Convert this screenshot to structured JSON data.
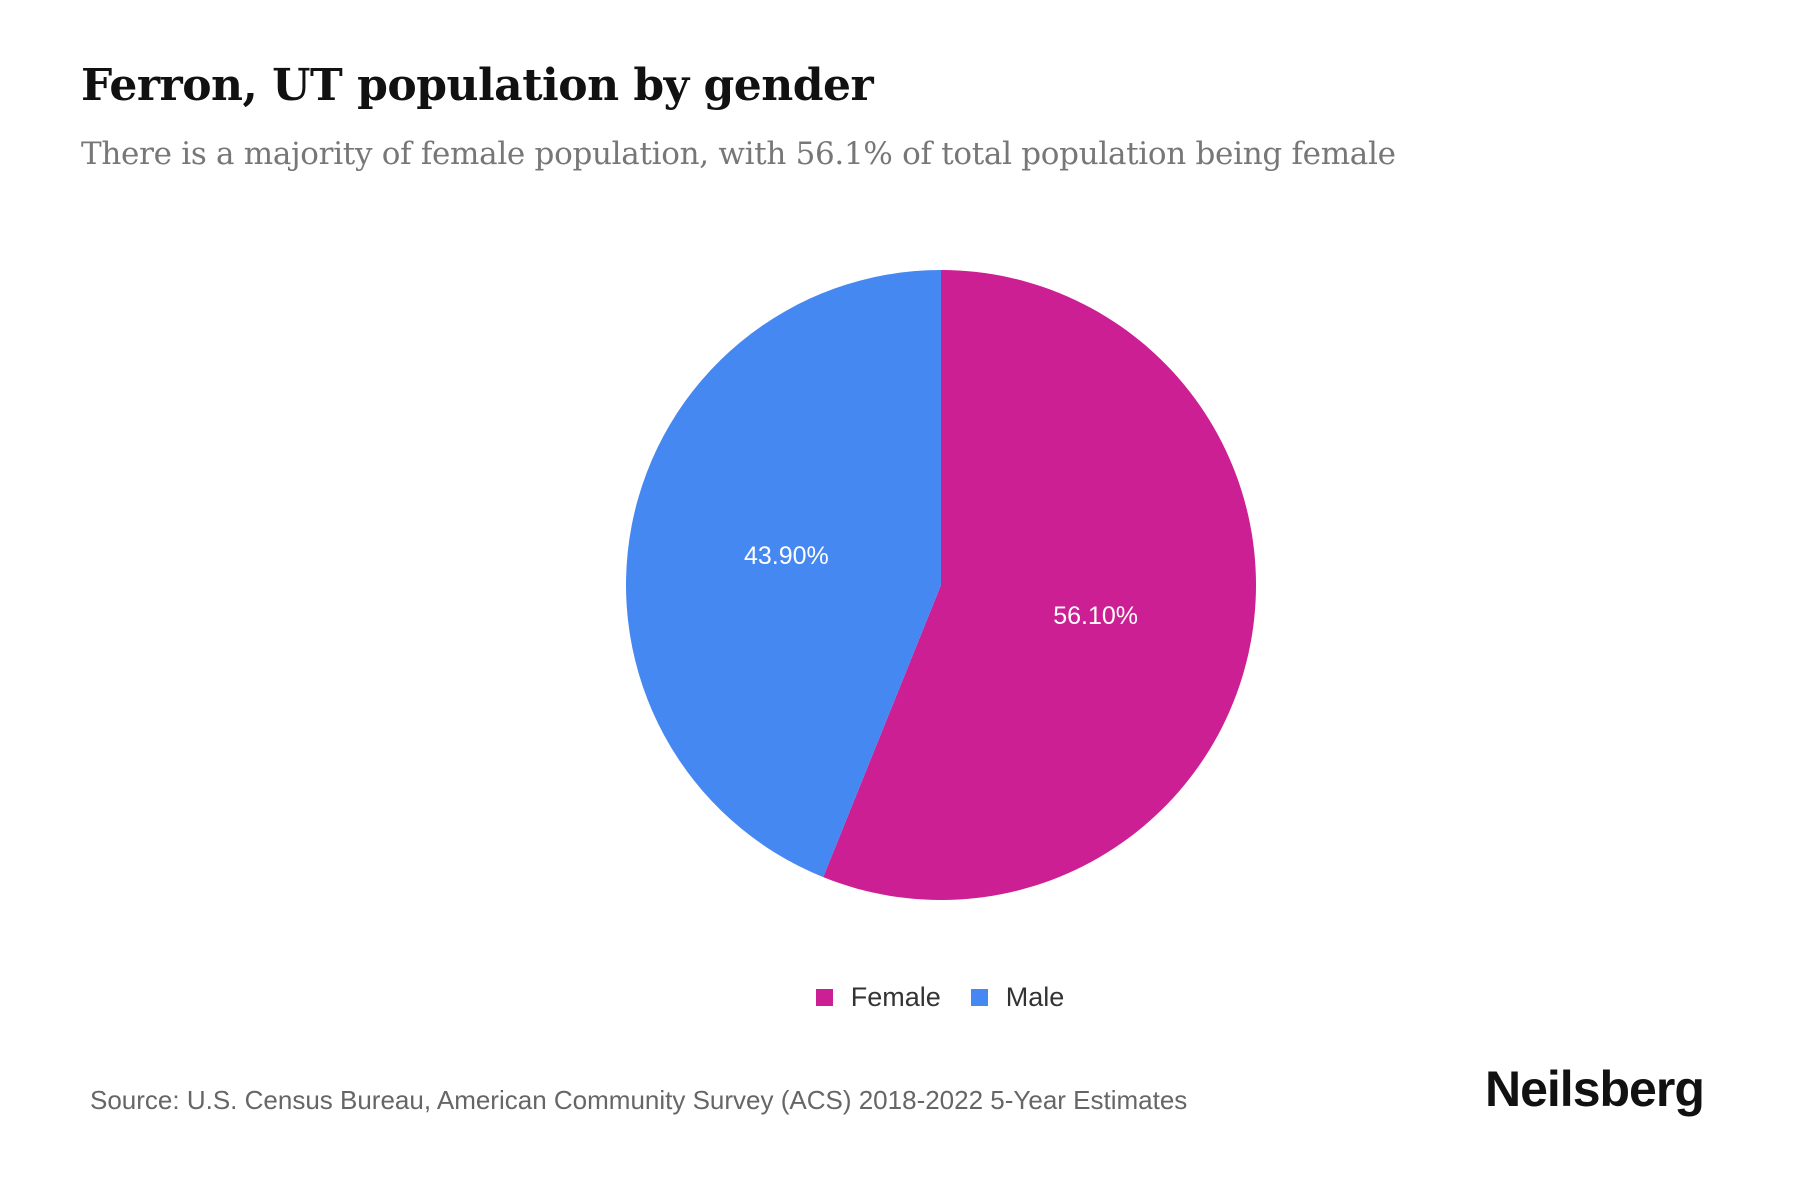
{
  "chart_data": {
    "type": "pie",
    "title": "Ferron, UT population by gender",
    "subtitle": "There is a majority of female population, with 56.1% of total population being female",
    "categories": [
      "Female",
      "Male"
    ],
    "values": [
      56.1,
      43.9
    ],
    "labels": [
      "56.10%",
      "43.90%"
    ],
    "colors": [
      "#CC1F93",
      "#4688F2"
    ],
    "legend_position": "bottom",
    "start_angle_deg": 0,
    "direction": "clockwise"
  },
  "footer": {
    "source": "Source: U.S. Census Bureau, American Community Survey (ACS) 2018-2022 5-Year Estimates",
    "logo": "Neilsberg"
  }
}
